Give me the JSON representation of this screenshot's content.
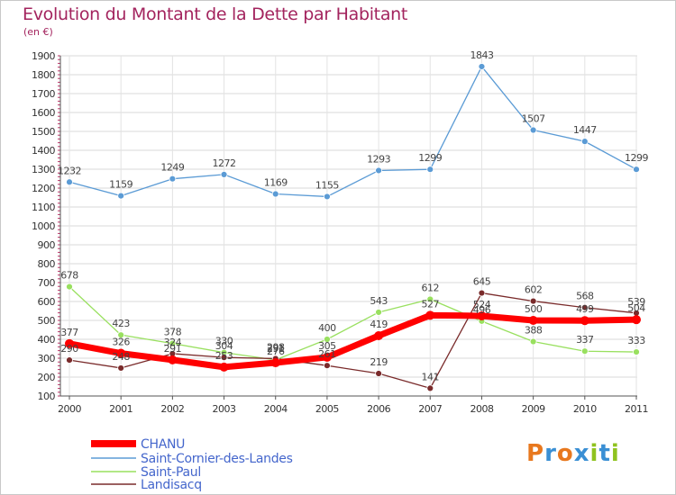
{
  "title": "Evolution du Montant de la Dette par Habitant",
  "unit_label": "(en €)",
  "logo": {
    "text": "Proxiti",
    "colors": [
      "#e8781e",
      "#3a8fd4",
      "#e8781e",
      "#3a8fd4",
      "#8fc31f",
      "#3a8fd4",
      "#8fc31f"
    ]
  },
  "chart_data": {
    "type": "line",
    "title": "Evolution du Montant de la Dette par Habitant",
    "ylabel": "(en €)",
    "xlabel": "",
    "x": [
      "2000",
      "2001",
      "2002",
      "2003",
      "2004",
      "2005",
      "2006",
      "2007",
      "2008",
      "2009",
      "2010",
      "2011"
    ],
    "ylim": [
      100,
      1900
    ],
    "yticks": [
      100,
      200,
      300,
      400,
      500,
      600,
      700,
      800,
      900,
      1000,
      1100,
      1200,
      1300,
      1400,
      1500,
      1600,
      1700,
      1800,
      1900
    ],
    "grid": true,
    "legend_position": "bottom-left",
    "series": [
      {
        "name": "CHANU",
        "color": "#ff0000",
        "width": 7,
        "marker": 5,
        "values": [
          377,
          326,
          291,
          253,
          276,
          305,
          419,
          527,
          524,
          500,
          499,
          504
        ],
        "labels": [
          "377",
          "326",
          "291",
          "253",
          "276",
          "305",
          "419",
          "527",
          "524",
          "500",
          "499",
          "504"
        ]
      },
      {
        "name": "Saint-Cornier-des-Landes",
        "color": "#5b9bd5",
        "width": 1.3,
        "marker": 3.5,
        "values": [
          1232,
          1159,
          1249,
          1272,
          1169,
          1155,
          1293,
          1299,
          1843,
          1507,
          1447,
          1299
        ],
        "labels": [
          "1232",
          "1159",
          "1249",
          "1272",
          "1169",
          "1155",
          "1293",
          "1299",
          "1843",
          "1507",
          "1447",
          "1299"
        ]
      },
      {
        "name": "Saint-Paul",
        "color": "#99e05f",
        "width": 1.3,
        "marker": 3.5,
        "values": [
          678,
          423,
          378,
          330,
          291,
          400,
          543,
          612,
          496,
          388,
          337,
          333
        ],
        "labels": [
          "678",
          "423",
          "378",
          "330",
          "291",
          "400",
          "543",
          "612",
          "496",
          "388",
          "337",
          "333"
        ]
      },
      {
        "name": "Landisacq",
        "color": "#7a2b2b",
        "width": 1.3,
        "marker": 3.5,
        "values": [
          290,
          248,
          324,
          304,
          298,
          261,
          219,
          141,
          645,
          602,
          568,
          539
        ],
        "labels": [
          "290",
          "248",
          "324",
          "304",
          "298",
          "261",
          "219",
          "141",
          "645",
          "602",
          "568",
          "539"
        ]
      }
    ]
  }
}
